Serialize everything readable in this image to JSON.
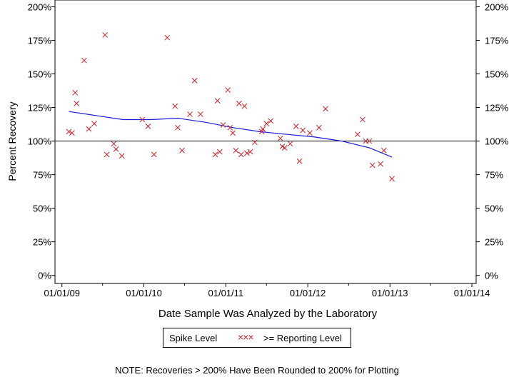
{
  "chart_data": {
    "type": "scatter",
    "xlabel": "Date Sample Was Analyzed by the Laboratory",
    "ylabel": "Percent Recovery",
    "x_ticks": [
      "01/01/09",
      "01/01/10",
      "01/01/11",
      "01/01/12",
      "01/01/13",
      "01/01/14"
    ],
    "y_ticks": [
      "0%",
      "25%",
      "50%",
      "75%",
      "100%",
      "125%",
      "150%",
      "175%",
      "200%"
    ],
    "y_ticks_right": [
      "0%",
      "25%",
      "50%",
      "75%",
      "100%",
      "125%",
      "150%",
      "175%",
      "200%"
    ],
    "xlim": [
      "2008-12-01",
      "2014-01-20"
    ],
    "ylim": [
      -6,
      205
    ],
    "reference_line": 100,
    "legend": {
      "position": "bottom-center",
      "entries": [
        "Spike Level",
        ">= Reporting Level"
      ]
    },
    "series": [
      {
        "name": "Spike Level",
        "marker": "x",
        "color": "#d0202a",
        "points": [
          {
            "x": "2009-02-01",
            "y": 107
          },
          {
            "x": "2009-02-15",
            "y": 106
          },
          {
            "x": "2009-03-01",
            "y": 136
          },
          {
            "x": "2009-03-07",
            "y": 128
          },
          {
            "x": "2009-04-10",
            "y": 160
          },
          {
            "x": "2009-05-01",
            "y": 109
          },
          {
            "x": "2009-05-25",
            "y": 113
          },
          {
            "x": "2009-07-12",
            "y": 179
          },
          {
            "x": "2009-07-20",
            "y": 90
          },
          {
            "x": "2009-08-20",
            "y": 98
          },
          {
            "x": "2009-08-30",
            "y": 94
          },
          {
            "x": "2009-09-25",
            "y": 89
          },
          {
            "x": "2009-12-25",
            "y": 116
          },
          {
            "x": "2010-01-20",
            "y": 111
          },
          {
            "x": "2010-02-15",
            "y": 90
          },
          {
            "x": "2010-04-15",
            "y": 177
          },
          {
            "x": "2010-05-20",
            "y": 126
          },
          {
            "x": "2010-06-01",
            "y": 110
          },
          {
            "x": "2010-06-20",
            "y": 93
          },
          {
            "x": "2010-07-25",
            "y": 120
          },
          {
            "x": "2010-08-15",
            "y": 145
          },
          {
            "x": "2010-09-10",
            "y": 120
          },
          {
            "x": "2010-11-15",
            "y": 90
          },
          {
            "x": "2010-11-25",
            "y": 130
          },
          {
            "x": "2010-12-05",
            "y": 92
          },
          {
            "x": "2010-12-20",
            "y": 112
          },
          {
            "x": "2011-01-10",
            "y": 138
          },
          {
            "x": "2011-01-20",
            "y": 110
          },
          {
            "x": "2011-02-01",
            "y": 106
          },
          {
            "x": "2011-02-15",
            "y": 93
          },
          {
            "x": "2011-03-01",
            "y": 128
          },
          {
            "x": "2011-03-10",
            "y": 90
          },
          {
            "x": "2011-03-25",
            "y": 126
          },
          {
            "x": "2011-04-05",
            "y": 91
          },
          {
            "x": "2011-04-20",
            "y": 92
          },
          {
            "x": "2011-05-10",
            "y": 99
          },
          {
            "x": "2011-06-10",
            "y": 107
          },
          {
            "x": "2011-06-15",
            "y": 109
          },
          {
            "x": "2011-07-01",
            "y": 113
          },
          {
            "x": "2011-07-20",
            "y": 115
          },
          {
            "x": "2011-09-01",
            "y": 102
          },
          {
            "x": "2011-09-10",
            "y": 96
          },
          {
            "x": "2011-09-20",
            "y": 95
          },
          {
            "x": "2011-10-15",
            "y": 98
          },
          {
            "x": "2011-11-10",
            "y": 111
          },
          {
            "x": "2011-11-25",
            "y": 85
          },
          {
            "x": "2011-12-10",
            "y": 108
          },
          {
            "x": "2012-01-10",
            "y": 106
          },
          {
            "x": "2012-02-20",
            "y": 110
          },
          {
            "x": "2012-03-20",
            "y": 124
          },
          {
            "x": "2012-08-10",
            "y": 105
          },
          {
            "x": "2012-09-01",
            "y": 116
          },
          {
            "x": "2012-09-15",
            "y": 100
          },
          {
            "x": "2012-10-01",
            "y": 100
          },
          {
            "x": "2012-10-15",
            "y": 82
          },
          {
            "x": "2012-11-20",
            "y": 83
          },
          {
            "x": "2012-12-05",
            "y": 93
          },
          {
            "x": "2013-01-10",
            "y": 72
          }
        ]
      }
    ],
    "trend_line": {
      "color": "#1a1adc",
      "points": [
        {
          "x": "2009-02-01",
          "y": 122
        },
        {
          "x": "2009-06-01",
          "y": 119
        },
        {
          "x": "2009-10-01",
          "y": 116
        },
        {
          "x": "2010-02-01",
          "y": 116
        },
        {
          "x": "2010-06-01",
          "y": 117
        },
        {
          "x": "2010-10-01",
          "y": 114
        },
        {
          "x": "2011-02-01",
          "y": 110
        },
        {
          "x": "2011-06-01",
          "y": 107
        },
        {
          "x": "2011-10-01",
          "y": 105
        },
        {
          "x": "2012-02-01",
          "y": 103
        },
        {
          "x": "2012-06-01",
          "y": 100
        },
        {
          "x": "2012-10-01",
          "y": 95
        },
        {
          "x": "2013-01-10",
          "y": 88
        }
      ]
    }
  },
  "legend": {
    "series_label": "Spike Level",
    "marks": "×××",
    "reporting_label": ">= Reporting Level"
  },
  "note": "NOTE: Recoveries > 200% Have Been Rounded to 200% for Plotting"
}
